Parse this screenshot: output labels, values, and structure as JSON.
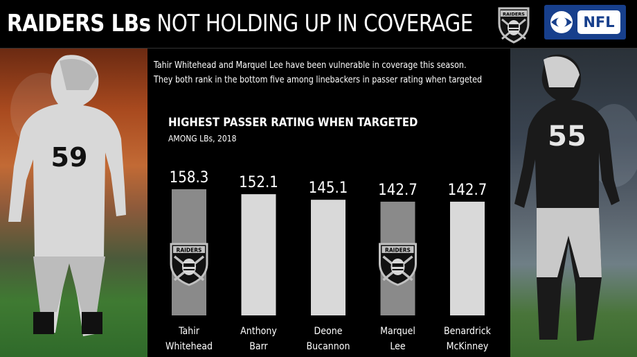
{
  "header": {
    "title_bold": "RAIDERS LBs",
    "title_light": "NOT HOLDING UP IN COVERAGE",
    "raiders_logo_text": "RAIDERS",
    "network_logo_text": "NFL"
  },
  "subtitle": {
    "line1": "Tahir Whitehead and Marquel Lee have been vulnerable in coverage this season.",
    "line2": "They both rank in the bottom five among linebackers in passer rating when targeted"
  },
  "colors": {
    "raiders_bar": "#8a8a8a",
    "other_bar": "#d9d9d9",
    "cbs_blue": "#173f8c"
  },
  "chart_data": {
    "type": "bar",
    "title": "HIGHEST PASSER RATING WHEN TARGETED",
    "subtitle": "AMONG LBs, 2018",
    "categories": [
      [
        "Tahir",
        "Whitehead"
      ],
      [
        "Anthony",
        "Barr"
      ],
      [
        "Deone",
        "Bucannon"
      ],
      [
        "Marquel",
        "Lee"
      ],
      [
        "Benardrick",
        "McKinney"
      ]
    ],
    "values": [
      158.3,
      152.1,
      145.1,
      142.7,
      142.7
    ],
    "value_labels": [
      "158.3",
      "152.1",
      "145.1",
      "142.7",
      "142.7"
    ],
    "raiders_player": [
      true,
      false,
      false,
      true,
      false
    ],
    "logo_on_bar_text": "RAIDERS",
    "ylim": [
      0,
      158.3
    ],
    "grid": false,
    "legend": "none"
  }
}
